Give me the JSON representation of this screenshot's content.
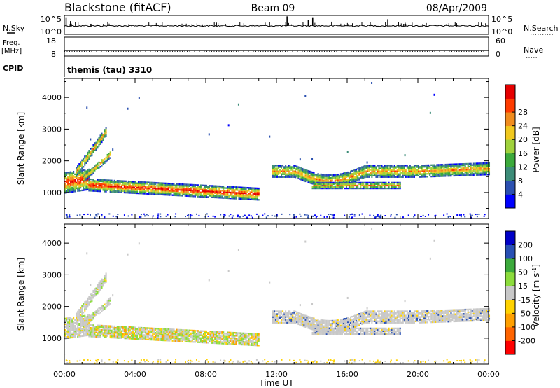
{
  "header": {
    "station": "Blackstone (fitACF)",
    "beam": "Beam 09",
    "date": "08/Apr/2009",
    "cpid_text": "themis (tau) 3310"
  },
  "left_labels": {
    "nsky": "N.Sky",
    "freq": "Freq.",
    "mhz": "[MHz]",
    "cpid": "CPID"
  },
  "right_labels": {
    "nsearch": "N.Search",
    "nave": "Nave"
  },
  "chart_data": [
    {
      "type": "line",
      "name": "N.Sky / N.Search noise",
      "left_ticks": [
        "10^5",
        "10^0"
      ],
      "right_ticks": [
        "10^5",
        "10^0"
      ],
      "baseline_fraction": 0.45,
      "spikes_hours": [
        [
          0.1,
          0.9
        ],
        [
          0.35,
          0.7
        ],
        [
          1.5,
          0.55
        ],
        [
          2.6,
          0.45
        ],
        [
          12.6,
          0.95
        ],
        [
          13.8,
          0.75
        ],
        [
          14.05,
          0.9
        ],
        [
          18.3,
          0.8
        ],
        [
          18.6,
          0.5
        ],
        [
          19.2,
          0.55
        ],
        [
          22.2,
          0.5
        ]
      ]
    },
    {
      "type": "line",
      "name": "Freq / Nave",
      "left_ticks": [
        "18",
        "8"
      ],
      "right_ticks": [
        "60",
        "0"
      ],
      "freq_level_fraction": 0.3
    },
    {
      "type": "heatmap",
      "parameter": "Power",
      "ylabel": "Slant Range [km]",
      "ylim": [
        180,
        4600
      ],
      "yticks": [
        1000,
        2000,
        3000,
        4000
      ],
      "colorbar_label": "Power [dB]",
      "colorbar_ticks": [
        "4",
        "8",
        "12",
        "16",
        "20",
        "24",
        "28"
      ],
      "colors": [
        "#0000ff",
        "#2b50b0",
        "#3c8c78",
        "#3caa3c",
        "#a0d23c",
        "#f0c81e",
        "#f08c1e",
        "#ff3c00",
        "#e60000"
      ],
      "echo_regions_km": [
        {
          "t0": 0.0,
          "t1": 1.3,
          "r0": 950,
          "r1": 1900
        },
        {
          "t0": 0.8,
          "t1": 2.2,
          "r0": 1000,
          "r1": 3000
        },
        {
          "t0": 1.5,
          "t1": 11.0,
          "r0": 700,
          "r1": 1400
        },
        {
          "t0": 11.7,
          "t1": 24.0,
          "r0": 1200,
          "r1": 2000
        }
      ]
    },
    {
      "type": "heatmap",
      "parameter": "Velocity",
      "ylabel": "Slant Range [km]",
      "ylim": [
        180,
        4600
      ],
      "yticks": [
        1000,
        2000,
        3000,
        4000
      ],
      "colorbar_label": "Velocity [m s^-1]",
      "colorbar_ticks": [
        "-200",
        "-100",
        "-50",
        "-15",
        "15",
        "50",
        "100",
        "200"
      ],
      "colors": [
        "#ff0000",
        "#ff6400",
        "#ffa000",
        "#ffd200",
        "#c8c8c8",
        "#8cdc3c",
        "#3caa3c",
        "#2850b4",
        "#0000c8"
      ]
    }
  ],
  "x_axis": {
    "label": "Time UT",
    "ticks": [
      "00:00",
      "04:00",
      "08:00",
      "12:00",
      "16:00",
      "20:00",
      "00:00"
    ],
    "range_hours": [
      0,
      24
    ]
  }
}
